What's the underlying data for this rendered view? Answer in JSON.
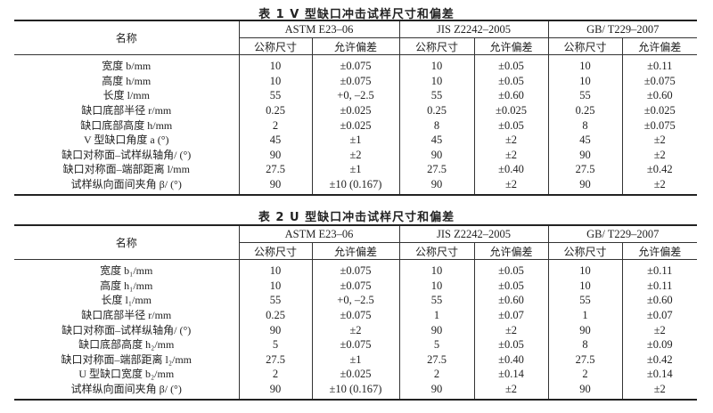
{
  "tables": [
    {
      "caption": "表 1  V 型缺口冲击试样尺寸和偏差",
      "name_header": "名称",
      "standards": [
        "ASTM E23–06",
        "JIS Z2242–2005",
        "GB/ T229–2007"
      ],
      "sub_headers": [
        "公称尺寸",
        "允许偏差"
      ],
      "rows": [
        [
          "宽度 b/mm",
          "10",
          "±0.075",
          "10",
          "±0.05",
          "10",
          "±0.11"
        ],
        [
          "高度 h/mm",
          "10",
          "±0.075",
          "10",
          "±0.05",
          "10",
          "±0.075"
        ],
        [
          "长度 l/mm",
          "55",
          "+0, –2.5",
          "55",
          "±0.60",
          "55",
          "±0.60"
        ],
        [
          "缺口底部半径 r/mm",
          "0.25",
          "±0.025",
          "0.25",
          "±0.025",
          "0.25",
          "±0.025"
        ],
        [
          "缺口底部高度 h/mm",
          "2",
          "±0.025",
          "8",
          "±0.05",
          "8",
          "±0.075"
        ],
        [
          "V 型缺口角度 a (°)",
          "45",
          "±1",
          "45",
          "±2",
          "45",
          "±2"
        ],
        [
          "缺口对称面–试样纵轴角/ (°)",
          "90",
          "±2",
          "90",
          "±2",
          "90",
          "±2"
        ],
        [
          "缺口对称面–端部距离 l/mm",
          "27.5",
          "±1",
          "27.5",
          "±0.40",
          "27.5",
          "±0.42"
        ],
        [
          "试样纵向面间夹角 β/ (°)",
          "90",
          "±10 (0.167)",
          "90",
          "±2",
          "90",
          "±2"
        ]
      ]
    },
    {
      "caption": "表 2  U 型缺口冲击试样尺寸和偏差",
      "name_header": "名称",
      "standards": [
        "ASTM E23–06",
        "JIS Z2242–2005",
        "GB/ T229–2007"
      ],
      "sub_headers": [
        "公称尺寸",
        "允许偏差"
      ],
      "rows": [
        [
          "宽度 b₁/mm",
          "10",
          "±0.075",
          "10",
          "±0.05",
          "10",
          "±0.11"
        ],
        [
          "高度 h₁/mm",
          "10",
          "±0.075",
          "10",
          "±0.05",
          "10",
          "±0.11"
        ],
        [
          "长度 l₁/mm",
          "55",
          "+0, –2.5",
          "55",
          "±0.60",
          "55",
          "±0.60"
        ],
        [
          "缺口底部半径 r/mm",
          "0.25",
          "±0.075",
          "1",
          "±0.07",
          "1",
          "±0.07"
        ],
        [
          "缺口对称面–试样纵轴角/ (°)",
          "90",
          "±2",
          "90",
          "±2",
          "90",
          "±2"
        ],
        [
          "缺口底部高度 h₂/mm",
          "5",
          "±0.075",
          "5",
          "±0.05",
          "8",
          "±0.09"
        ],
        [
          "缺口对称面–端部距离 l₂/mm",
          "27.5",
          "±1",
          "27.5",
          "±0.40",
          "27.5",
          "±0.42"
        ],
        [
          "U 型缺口宽度 b₂/mm",
          "2",
          "±0.025",
          "2",
          "±0.14",
          "2",
          "±0.14"
        ],
        [
          "试样纵向面间夹角 β/ (°)",
          "90",
          "±10 (0.167)",
          "90",
          "±2",
          "90",
          "±2"
        ]
      ]
    }
  ]
}
